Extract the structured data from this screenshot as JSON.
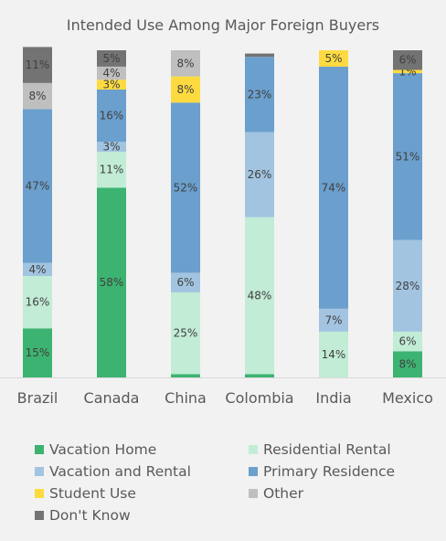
{
  "chart_data": {
    "type": "bar",
    "stacked": true,
    "percent": true,
    "title": "Intended Use Among Major Foreign Buyers",
    "categories": [
      "Brazil",
      "Canada",
      "China",
      "Colombia",
      "India",
      "Mexico"
    ],
    "ylim": [
      0,
      100
    ],
    "grid": false,
    "legend_position": "bottom",
    "series": [
      {
        "name": "Vacation Home",
        "color": "#3cb371",
        "values": [
          15,
          58,
          1,
          1,
          0,
          8
        ],
        "labels": [
          "15%",
          "58%",
          "",
          "",
          "",
          "8%"
        ]
      },
      {
        "name": "Residential Rental",
        "color": "#c2ecd6",
        "values": [
          16,
          11,
          25,
          48,
          14,
          6
        ],
        "labels": [
          "16%",
          "11%",
          "25%",
          "48%",
          "14%",
          "6%"
        ]
      },
      {
        "name": "Vacation and Rental",
        "color": "#a2c4e0",
        "values": [
          4,
          3,
          6,
          26,
          7,
          28
        ],
        "labels": [
          "4%",
          "3%",
          "6%",
          "26%",
          "7%",
          "28%"
        ]
      },
      {
        "name": "Primary Residence",
        "color": "#6b9fcd",
        "values": [
          47,
          16,
          52,
          23,
          74,
          51
        ],
        "labels": [
          "47%",
          "16%",
          "52%",
          "23%",
          "74%",
          "51%"
        ]
      },
      {
        "name": "Student Use",
        "color": "#fddb40",
        "values": [
          0,
          3,
          8,
          0,
          5,
          1
        ],
        "labels": [
          "",
          "3%",
          "8%",
          "",
          "5%",
          "1%"
        ]
      },
      {
        "name": "Other",
        "color": "#bfbfbf",
        "values": [
          8,
          4,
          8,
          0,
          0,
          0
        ],
        "labels": [
          "8%",
          "4%",
          "8%",
          "",
          "",
          ""
        ]
      },
      {
        "name": "Don't Know",
        "color": "#737373",
        "values": [
          11,
          5,
          0,
          1,
          0,
          6
        ],
        "labels": [
          "11%",
          "5%",
          "",
          "",
          "",
          "6%"
        ]
      }
    ]
  }
}
